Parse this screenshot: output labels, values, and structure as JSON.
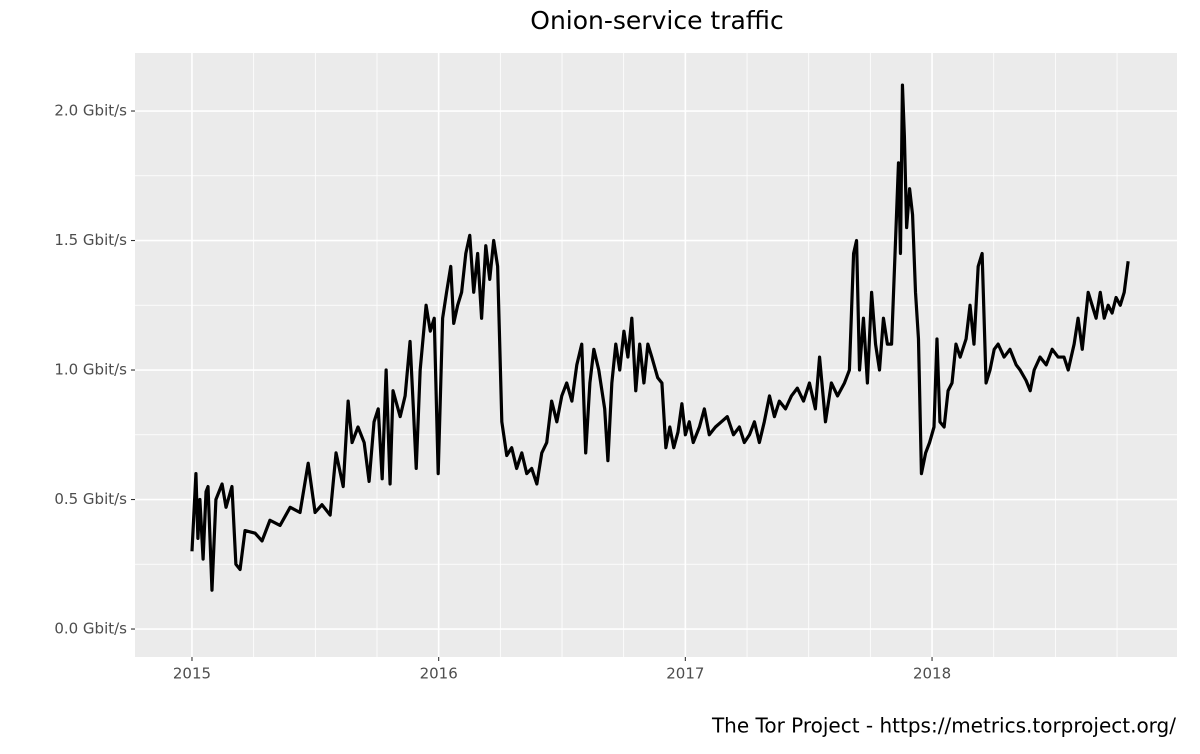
{
  "chart_data": {
    "type": "line",
    "title": "Onion-service traffic",
    "caption": "The Tor Project - https://metrics.torproject.org/",
    "x": [
      2015.0,
      2015.008,
      2015.016,
      2015.024,
      2015.032,
      2015.045,
      2015.057,
      2015.065,
      2015.081,
      2015.097,
      2015.122,
      2015.138,
      2015.162,
      2015.178,
      2015.195,
      2015.215,
      2015.256,
      2015.284,
      2015.316,
      2015.357,
      2015.398,
      2015.438,
      2015.471,
      2015.499,
      2015.527,
      2015.56,
      2015.584,
      2015.613,
      2015.633,
      2015.649,
      2015.673,
      2015.698,
      2015.718,
      2015.738,
      2015.755,
      2015.771,
      2015.787,
      2015.803,
      2015.815,
      2015.844,
      2015.864,
      2015.884,
      2015.897,
      2015.909,
      2015.925,
      2015.949,
      2015.966,
      2015.982,
      2015.998,
      2016.016,
      2016.032,
      2016.049,
      2016.061,
      2016.077,
      2016.093,
      2016.11,
      2016.126,
      2016.142,
      2016.158,
      2016.174,
      2016.191,
      2016.207,
      2016.223,
      2016.239,
      2016.256,
      2016.276,
      2016.296,
      2016.316,
      2016.337,
      2016.357,
      2016.377,
      2016.398,
      2016.418,
      2016.438,
      2016.458,
      2016.479,
      2016.499,
      2016.519,
      2016.54,
      2016.56,
      2016.58,
      2016.596,
      2016.613,
      2016.629,
      2016.649,
      2016.673,
      2016.686,
      2016.702,
      2016.718,
      2016.734,
      2016.751,
      2016.767,
      2016.783,
      2016.799,
      2016.815,
      2016.832,
      2016.848,
      2016.864,
      2016.888,
      2016.905,
      2016.921,
      2016.937,
      2016.953,
      2016.97,
      2016.986,
      2017.0,
      2017.016,
      2017.032,
      2017.057,
      2017.077,
      2017.097,
      2017.122,
      2017.146,
      2017.17,
      2017.195,
      2017.219,
      2017.239,
      2017.26,
      2017.28,
      2017.3,
      2017.32,
      2017.341,
      2017.361,
      2017.381,
      2017.406,
      2017.43,
      2017.454,
      2017.479,
      2017.503,
      2017.527,
      2017.544,
      2017.568,
      2017.592,
      2017.617,
      2017.645,
      2017.665,
      2017.682,
      2017.694,
      2017.706,
      2017.722,
      2017.738,
      2017.755,
      2017.771,
      2017.787,
      2017.803,
      2017.819,
      2017.836,
      2017.852,
      2017.864,
      2017.872,
      2017.88,
      2017.888,
      2017.897,
      2017.909,
      2017.921,
      2017.933,
      2017.945,
      2017.957,
      2017.974,
      2017.99,
      2018.008,
      2018.02,
      2018.032,
      2018.049,
      2018.065,
      2018.081,
      2018.097,
      2018.114,
      2018.138,
      2018.154,
      2018.17,
      2018.187,
      2018.203,
      2018.219,
      2018.235,
      2018.252,
      2018.268,
      2018.292,
      2018.316,
      2018.341,
      2018.357,
      2018.381,
      2018.398,
      2018.414,
      2018.438,
      2018.463,
      2018.487,
      2018.511,
      2018.535,
      2018.552,
      2018.576,
      2018.592,
      2018.609,
      2018.633,
      2018.649,
      2018.665,
      2018.682,
      2018.698,
      2018.714,
      2018.73,
      2018.746,
      2018.763,
      2018.779,
      2018.795
    ],
    "series": [
      {
        "name": "Onion-service traffic",
        "color": "#000000",
        "values": [
          0.3,
          0.45,
          0.6,
          0.35,
          0.5,
          0.27,
          0.53,
          0.55,
          0.15,
          0.5,
          0.56,
          0.47,
          0.55,
          0.25,
          0.23,
          0.38,
          0.37,
          0.34,
          0.42,
          0.4,
          0.47,
          0.45,
          0.64,
          0.45,
          0.48,
          0.44,
          0.68,
          0.55,
          0.88,
          0.72,
          0.78,
          0.72,
          0.57,
          0.8,
          0.85,
          0.58,
          1.0,
          0.56,
          0.92,
          0.82,
          0.9,
          1.11,
          0.86,
          0.62,
          1.0,
          1.25,
          1.15,
          1.2,
          0.6,
          1.2,
          1.3,
          1.4,
          1.18,
          1.25,
          1.3,
          1.45,
          1.52,
          1.3,
          1.45,
          1.2,
          1.48,
          1.35,
          1.5,
          1.4,
          0.8,
          0.67,
          0.7,
          0.62,
          0.68,
          0.6,
          0.62,
          0.56,
          0.68,
          0.72,
          0.88,
          0.8,
          0.9,
          0.95,
          0.88,
          1.02,
          1.1,
          0.68,
          0.95,
          1.08,
          1.0,
          0.85,
          0.65,
          0.95,
          1.1,
          1.0,
          1.15,
          1.05,
          1.2,
          0.92,
          1.1,
          0.95,
          1.1,
          1.05,
          0.97,
          0.95,
          0.7,
          0.78,
          0.7,
          0.76,
          0.87,
          0.75,
          0.8,
          0.72,
          0.78,
          0.85,
          0.75,
          0.78,
          0.8,
          0.82,
          0.75,
          0.78,
          0.72,
          0.75,
          0.8,
          0.72,
          0.8,
          0.9,
          0.82,
          0.88,
          0.85,
          0.9,
          0.93,
          0.88,
          0.95,
          0.85,
          1.05,
          0.8,
          0.95,
          0.9,
          0.95,
          1.0,
          1.45,
          1.5,
          1.0,
          1.2,
          0.95,
          1.3,
          1.1,
          1.0,
          1.2,
          1.1,
          1.1,
          1.5,
          1.8,
          1.45,
          2.1,
          1.9,
          1.55,
          1.7,
          1.6,
          1.3,
          1.12,
          0.6,
          0.68,
          0.72,
          0.78,
          1.12,
          0.8,
          0.78,
          0.92,
          0.95,
          1.1,
          1.05,
          1.12,
          1.25,
          1.1,
          1.4,
          1.45,
          0.95,
          1.0,
          1.08,
          1.1,
          1.05,
          1.08,
          1.02,
          1.0,
          0.96,
          0.92,
          1.0,
          1.05,
          1.02,
          1.08,
          1.05,
          1.05,
          1.0,
          1.1,
          1.2,
          1.08,
          1.3,
          1.25,
          1.2,
          1.3,
          1.2,
          1.25,
          1.22,
          1.28,
          1.25,
          1.3,
          1.42
        ]
      }
    ],
    "xlim": [
      2014.769,
      2018.993
    ],
    "xticks": [
      2015,
      2016,
      2017,
      2018
    ],
    "x_minor_ticks": [
      2015.25,
      2015.5,
      2015.75,
      2016.25,
      2016.5,
      2016.75,
      2017.25,
      2017.5,
      2017.75,
      2018.25,
      2018.5,
      2018.75
    ],
    "ylim": [
      -0.108,
      2.224
    ],
    "yticks": [
      {
        "value": 0,
        "label": "0.0 Gbit/s"
      },
      {
        "value": 0.5,
        "label": "0.5 Gbit/s"
      },
      {
        "value": 1,
        "label": "1.0 Gbit/s"
      },
      {
        "value": 1.5,
        "label": "1.5 Gbit/s"
      },
      {
        "value": 2,
        "label": "2.0 Gbit/s"
      }
    ],
    "y_minor_ticks": [
      0.25,
      0.75,
      1.25,
      1.75
    ],
    "grid": true,
    "panel_color": "#ebebeb"
  }
}
